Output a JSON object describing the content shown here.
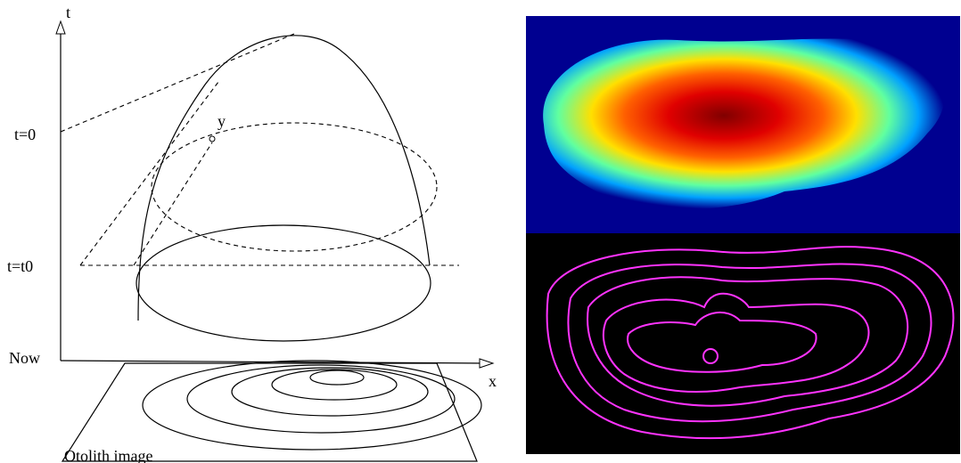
{
  "axis_labels": {
    "t": "t",
    "x": "x",
    "y": "y"
  },
  "time_labels": [
    "t=0",
    "t=t0",
    "Now"
  ],
  "caption": "Otolith image"
}
